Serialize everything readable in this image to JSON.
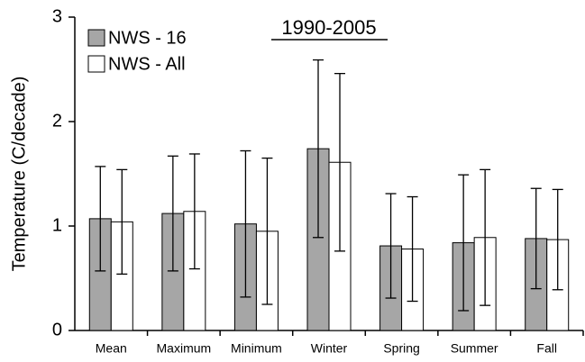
{
  "chart_data": {
    "type": "bar",
    "title": "1990-2005",
    "y_label": "Temperature (C/decade)",
    "categories": [
      "Mean",
      "Maximum",
      "Minimum",
      "Winter",
      "Spring",
      "Summer",
      "Fall"
    ],
    "series": [
      {
        "name": "NWS - 16",
        "color": "#a6a6a6",
        "values": [
          1.07,
          1.12,
          1.02,
          1.74,
          0.81,
          0.84,
          0.88
        ],
        "errors": [
          0.5,
          0.55,
          0.7,
          0.85,
          0.5,
          0.65,
          0.48
        ]
      },
      {
        "name": "NWS - All",
        "color": "#ffffff",
        "values": [
          1.04,
          1.14,
          0.95,
          1.61,
          0.78,
          0.89,
          0.87
        ],
        "errors": [
          0.5,
          0.55,
          0.7,
          0.85,
          0.5,
          0.65,
          0.48
        ]
      }
    ],
    "ylim": [
      0,
      3
    ],
    "yticks": [
      0,
      1,
      2,
      3
    ],
    "legend": "upper-left"
  }
}
